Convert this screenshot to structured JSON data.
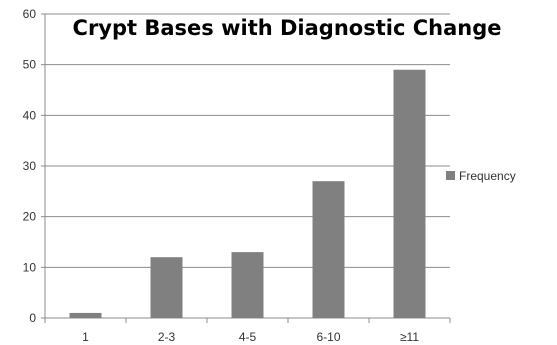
{
  "chart_data": {
    "type": "bar",
    "title": "Crypt Bases with Diagnostic Change",
    "categories": [
      "1",
      "2-3",
      "4-5",
      "6-10",
      "≥11"
    ],
    "series": [
      {
        "name": "Frequency",
        "values": [
          1,
          12,
          13,
          27,
          49
        ]
      }
    ],
    "xlabel": "",
    "ylabel": "",
    "ylim": [
      0,
      60
    ],
    "yticks": [
      0,
      10,
      20,
      30,
      40,
      50,
      60
    ],
    "grid": true,
    "legend": "right",
    "bar_color": "#808080",
    "grid_color": "#8c8c8c"
  }
}
